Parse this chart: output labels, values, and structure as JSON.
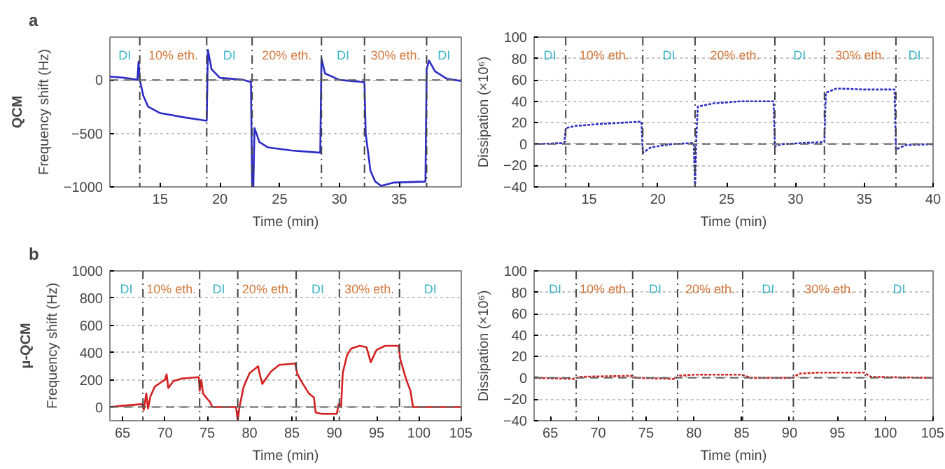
{
  "chart_data": [
    {
      "type": "line",
      "title": "a",
      "xlabel": "Time (min)",
      "ylabel": "Frequency shift (Hz)",
      "xlim": [
        10.8,
        40.2
      ],
      "xticks": [
        15,
        20,
        25,
        30,
        35
      ],
      "ylim": [
        -1000,
        400
      ],
      "yticks": [
        -1000,
        -500,
        0
      ],
      "grid": "y",
      "line_style": "solid",
      "series": [
        {
          "color": "#2b2bc8",
          "x": [
            10.8,
            12,
            13.1,
            13.2,
            13.3,
            13.6,
            14,
            15,
            17,
            18.8,
            18.9,
            19.0,
            19.3,
            20,
            22,
            22.6,
            22.7,
            22.8,
            22.9,
            23.3,
            24,
            26,
            28.4,
            28.5,
            28.8,
            30,
            32,
            32.1,
            32.2,
            32.6,
            33,
            33.5,
            34.5,
            37.2,
            37.3,
            37.5,
            38,
            39,
            40.2
          ],
          "values": [
            30,
            20,
            0,
            170,
            0,
            -150,
            -250,
            -310,
            -350,
            -380,
            -380,
            280,
            100,
            20,
            0,
            -20,
            -1000,
            -1000,
            -450,
            -580,
            -630,
            -660,
            -680,
            200,
            60,
            0,
            -20,
            -30,
            -500,
            -850,
            -950,
            -990,
            -960,
            -950,
            100,
            180,
            80,
            10,
            -10
          ]
        }
      ],
      "ref_lines": [
        {
          "axis": "x",
          "value": 13.3
        },
        {
          "axis": "x",
          "value": 18.9
        },
        {
          "axis": "x",
          "value": 22.7
        },
        {
          "axis": "x",
          "value": 28.5
        },
        {
          "axis": "x",
          "value": 32.1
        },
        {
          "axis": "x",
          "value": 37.3
        },
        {
          "axis": "y",
          "value": 0,
          "line_style": "dashed"
        }
      ],
      "annotations": [
        "QCM",
        "DI",
        "10% eth.",
        "DI",
        "20% eth.",
        "DI",
        "30% eth.",
        "DI"
      ]
    },
    {
      "type": "line",
      "xlabel": "Time (min)",
      "ylabel": "Dissipation (×10⁶)",
      "xlim": [
        11,
        40
      ],
      "xticks": [
        15,
        20,
        25,
        30,
        35,
        40
      ],
      "ylim": [
        -40,
        100
      ],
      "yticks": [
        -40,
        -20,
        0,
        20,
        40,
        60,
        80,
        100
      ],
      "grid": "y",
      "line_style": "dotted",
      "series": [
        {
          "color": "#2b2bc8",
          "x": [
            11,
            13.2,
            13.3,
            14,
            16,
            18.8,
            18.9,
            19.5,
            21,
            22.6,
            22.7,
            22.8,
            22.9,
            24,
            26,
            28.4,
            28.5,
            29,
            32.1,
            32.2,
            33,
            35,
            37.2,
            37.3,
            38,
            40
          ],
          "values": [
            0,
            1,
            15,
            17,
            19,
            21,
            -8,
            -3,
            0,
            1,
            -40,
            10,
            35,
            38,
            40,
            40,
            -2,
            0,
            2,
            48,
            52,
            51,
            51,
            -5,
            -1,
            0
          ]
        }
      ],
      "ref_lines": [
        {
          "axis": "x",
          "value": 13.3
        },
        {
          "axis": "x",
          "value": 18.9
        },
        {
          "axis": "x",
          "value": 22.7
        },
        {
          "axis": "x",
          "value": 28.5
        },
        {
          "axis": "x",
          "value": 32.1
        },
        {
          "axis": "x",
          "value": 37.3
        },
        {
          "axis": "y",
          "value": 0,
          "line_style": "dashed"
        }
      ],
      "annotations": [
        "DI",
        "10% eth.",
        "DI",
        "20% eth.",
        "DI",
        "30% eth.",
        "DI"
      ]
    },
    {
      "type": "line",
      "title": "b",
      "xlabel": "Time (min)",
      "ylabel": "Frequency shift (Hz)",
      "xlim": [
        63.5,
        105
      ],
      "xticks": [
        65,
        70,
        75,
        80,
        85,
        90,
        95,
        100,
        105
      ],
      "ylim": [
        -100,
        1000
      ],
      "yticks": [
        0,
        200,
        400,
        600,
        800,
        1000
      ],
      "grid": "y",
      "line_style": "solid",
      "series": [
        {
          "color": "#d42020",
          "x": [
            63.5,
            65,
            67,
            67.3,
            67.5,
            67.8,
            68,
            68.3,
            68.8,
            69.5,
            70,
            70.2,
            70.4,
            71,
            72,
            74,
            74.1,
            74.3,
            74.5,
            75,
            75.3,
            75.6,
            77,
            78.4,
            78.6,
            78.8,
            79.3,
            80,
            81,
            81.2,
            81.5,
            82.5,
            83.5,
            85.4,
            85.6,
            86,
            87,
            87.6,
            87.8,
            88.5,
            90.3,
            90.5,
            90.8,
            91,
            91.5,
            92,
            93,
            93.8,
            94.3,
            95,
            96,
            97.6,
            97.8,
            98.5,
            99,
            99.3,
            100,
            105
          ],
          "values": [
            0,
            10,
            20,
            20,
            -20,
            100,
            -10,
            80,
            150,
            180,
            200,
            240,
            140,
            190,
            210,
            220,
            120,
            200,
            100,
            60,
            40,
            0,
            0,
            0,
            -100,
            0,
            150,
            250,
            300,
            240,
            170,
            260,
            310,
            320,
            250,
            200,
            100,
            70,
            -40,
            -50,
            -50,
            20,
            0,
            250,
            380,
            430,
            450,
            440,
            330,
            420,
            450,
            450,
            350,
            200,
            120,
            0,
            0,
            0
          ]
        }
      ],
      "ref_lines": [
        {
          "axis": "x",
          "value": 67.4
        },
        {
          "axis": "x",
          "value": 74.1
        },
        {
          "axis": "x",
          "value": 78.6
        },
        {
          "axis": "x",
          "value": 85.5
        },
        {
          "axis": "x",
          "value": 90.6
        },
        {
          "axis": "x",
          "value": 97.7
        },
        {
          "axis": "y",
          "value": 0,
          "line_style": "dashed"
        }
      ],
      "annotations": [
        "μ-QCM",
        "DI",
        "10% eth.",
        "DI",
        "20% eth.",
        "DI",
        "30% eth.",
        "DI"
      ]
    },
    {
      "type": "line",
      "xlabel": "Time (min)",
      "ylabel": "Dissipation (×10⁶)",
      "xlim": [
        63.3,
        105
      ],
      "xticks": [
        65,
        70,
        75,
        80,
        85,
        90,
        95,
        100,
        105
      ],
      "ylim": [
        -40,
        100
      ],
      "yticks": [
        -40,
        -20,
        0,
        20,
        40,
        60,
        80,
        100
      ],
      "grid": "y",
      "line_style": "dotted",
      "series": [
        {
          "color": "#d42020",
          "x": [
            63.3,
            67.5,
            68,
            73.5,
            74,
            78,
            78.5,
            80,
            85,
            86,
            90.3,
            91,
            93,
            97.8,
            98.5,
            105
          ],
          "values": [
            0,
            -1,
            1,
            2,
            0,
            -1,
            2,
            3,
            3,
            0,
            0,
            4,
            5,
            5,
            1,
            0
          ]
        }
      ],
      "ref_lines": [
        {
          "axis": "x",
          "value": 67.7
        },
        {
          "axis": "x",
          "value": 73.6
        },
        {
          "axis": "x",
          "value": 78.3
        },
        {
          "axis": "x",
          "value": 85.1
        },
        {
          "axis": "x",
          "value": 90.4
        },
        {
          "axis": "x",
          "value": 97.9
        },
        {
          "axis": "y",
          "value": 0,
          "line_style": "dashed"
        }
      ],
      "annotations": [
        "DI",
        "10% eth.",
        "DI",
        "20% eth.",
        "DI",
        "30% eth.",
        "DI"
      ]
    }
  ]
}
